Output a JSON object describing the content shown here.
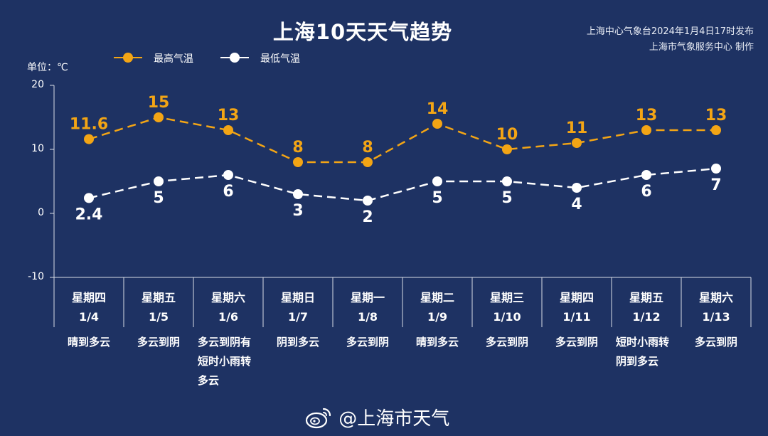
{
  "title": "上海10天天气趋势",
  "publisher": {
    "line1": "上海中心气象台2024年1月4日17时发布",
    "line2": "上海市气象服务中心 制作"
  },
  "watermark": "@上海市天气",
  "colors": {
    "high": "#f3a515",
    "low": "#ffffff",
    "background": "#1e3263"
  },
  "chart_data": {
    "type": "line",
    "unit_label": "单位：℃",
    "ylim": [
      -10,
      20
    ],
    "yticks": [
      "20",
      "10",
      "0",
      "-10"
    ],
    "legend_placement": "top-left",
    "categories": [
      {
        "day": "星期四",
        "date": "1/4",
        "condition": [
          "晴到多云"
        ]
      },
      {
        "day": "星期五",
        "date": "1/5",
        "condition": [
          "多云到阴"
        ]
      },
      {
        "day": "星期六",
        "date": "1/6",
        "condition": [
          "多云到阴有",
          "短时小雨转",
          "多云"
        ]
      },
      {
        "day": "星期日",
        "date": "1/7",
        "condition": [
          "阴到多云"
        ]
      },
      {
        "day": "星期一",
        "date": "1/8",
        "condition": [
          "多云到阴"
        ]
      },
      {
        "day": "星期二",
        "date": "1/9",
        "condition": [
          "晴到多云"
        ]
      },
      {
        "day": "星期三",
        "date": "1/10",
        "condition": [
          "多云到阴"
        ]
      },
      {
        "day": "星期四",
        "date": "1/11",
        "condition": [
          "多云到阴"
        ]
      },
      {
        "day": "星期五",
        "date": "1/12",
        "condition": [
          "短时小雨转",
          "阴到多云"
        ]
      },
      {
        "day": "星期六",
        "date": "1/13",
        "condition": [
          "多云到阴"
        ]
      }
    ],
    "series": [
      {
        "name": "最高气温",
        "values": [
          11.6,
          15,
          13,
          8,
          8,
          14,
          10,
          11,
          13,
          13
        ],
        "labels": [
          "11.6",
          "15",
          "13",
          "8",
          "8",
          "14",
          "10",
          "11",
          "13",
          "13"
        ]
      },
      {
        "name": "最低气温",
        "values": [
          2.4,
          5,
          6,
          3,
          2,
          5,
          5,
          4,
          6,
          7
        ],
        "labels": [
          "2.4",
          "5",
          "6",
          "3",
          "2",
          "5",
          "5",
          "4",
          "6",
          "7"
        ]
      }
    ]
  }
}
